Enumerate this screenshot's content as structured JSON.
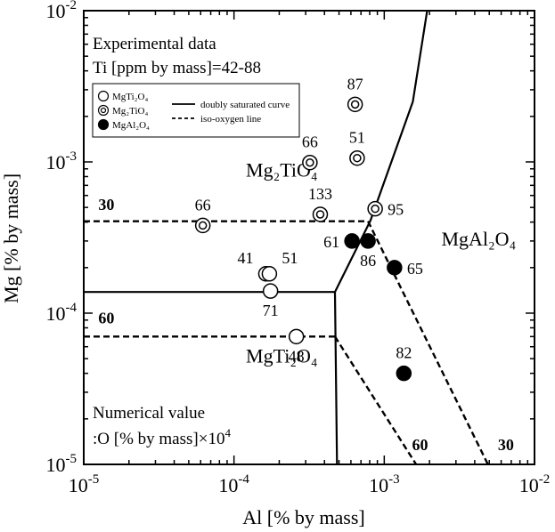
{
  "chart_data": {
    "type": "scatter",
    "x_scale": "log",
    "y_scale": "log",
    "xlim": [
      1e-05,
      0.01
    ],
    "ylim": [
      1e-05,
      0.01
    ],
    "xlabel": "Al [% by mass]",
    "ylabel": "Mg [% by mass]",
    "x_ticks": [
      {
        "value": 1e-05,
        "base": "10",
        "exp": "-5"
      },
      {
        "value": 0.0001,
        "base": "10",
        "exp": "-4"
      },
      {
        "value": 0.001,
        "base": "10",
        "exp": "-3"
      },
      {
        "value": 0.01,
        "base": "10",
        "exp": "-2"
      }
    ],
    "y_ticks": [
      {
        "value": 1e-05,
        "base": "10",
        "exp": "-5"
      },
      {
        "value": 0.0001,
        "base": "10",
        "exp": "-4"
      },
      {
        "value": 0.001,
        "base": "10",
        "exp": "-3"
      },
      {
        "value": 0.01,
        "base": "10",
        "exp": "-2"
      }
    ],
    "info_text": {
      "line1": "Experimental data",
      "line2": "Ti [ppm by mass]=42-88",
      "numerical_line1": "Numerical value",
      "numerical_line2": ":O [% by mass]×10",
      "numerical_sup": "4"
    },
    "legend": {
      "placement": "top-left",
      "items": [
        {
          "marker": "open-circle",
          "label": "MgTi₂O₄"
        },
        {
          "marker": "double-circle",
          "label": "Mg₂TiO₄"
        },
        {
          "marker": "filled-circle",
          "label": "MgAl₂O₄"
        },
        {
          "marker": "solid-line",
          "label": "doubly saturated curve"
        },
        {
          "marker": "dashed-line",
          "label": "iso-oxygen line"
        }
      ]
    },
    "regions": [
      {
        "label": "Mg₂TiO₄",
        "x": 0.00012,
        "y": 0.0008
      },
      {
        "label": "MgAl₂O₄",
        "x": 0.0024,
        "y": 0.00028
      },
      {
        "label": "MgTi₂O₄",
        "x": 0.00012,
        "y": 4.7e-05
      }
    ],
    "series": [
      {
        "name": "MgTi₂O₄",
        "marker": "open-circle",
        "points": [
          {
            "x": 0.000163,
            "y": 0.000182,
            "label": "41"
          },
          {
            "x": 0.000172,
            "y": 0.000182,
            "label": "51"
          },
          {
            "x": 0.000175,
            "y": 0.00014,
            "label": "71"
          },
          {
            "x": 0.00026,
            "y": 7e-05,
            "label": "48"
          }
        ]
      },
      {
        "name": "Mg₂TiO₄",
        "marker": "double-circle",
        "points": [
          {
            "x": 6.2e-05,
            "y": 0.00038,
            "label": "66"
          },
          {
            "x": 0.00032,
            "y": 0.00099,
            "label": "66"
          },
          {
            "x": 0.000375,
            "y": 0.00045,
            "label": "133"
          },
          {
            "x": 0.00064,
            "y": 0.0024,
            "label": "87"
          },
          {
            "x": 0.00066,
            "y": 0.00106,
            "label": "51"
          },
          {
            "x": 0.00087,
            "y": 0.00049,
            "label": "95"
          }
        ]
      },
      {
        "name": "MgAl₂O₄",
        "marker": "filled-circle",
        "points": [
          {
            "x": 0.00061,
            "y": 0.0003,
            "label": "61"
          },
          {
            "x": 0.00078,
            "y": 0.0003,
            "label": "86"
          },
          {
            "x": 0.00117,
            "y": 0.0002,
            "label": "65"
          },
          {
            "x": 0.00135,
            "y": 4e-05,
            "label": "82"
          }
        ]
      }
    ],
    "curves": [
      {
        "name": "doubly saturated curve",
        "style": "solid",
        "segments": [
          [
            [
              1e-05,
              0.000138
            ],
            [
              0.00047,
              0.000138
            ],
            [
              0.00081,
              0.00041
            ],
            [
              0.00155,
              0.0025
            ],
            [
              0.00193,
              0.01
            ]
          ],
          [
            [
              0.00047,
              0.000138
            ],
            [
              0.000485,
              1e-05
            ]
          ]
        ]
      },
      {
        "name": "iso-oxygen line",
        "style": "dashed",
        "segments": [
          {
            "label": "30",
            "label_at": [
              1.25e-05,
              0.00048
            ],
            "points": [
              [
                1e-05,
                0.000405
              ],
              [
                0.00078,
                0.000405
              ]
            ]
          },
          {
            "label": "",
            "points": [
              [
                0.00078,
                0.000405
              ],
              [
                0.0049,
                1e-05
              ]
            ]
          },
          {
            "label": "60",
            "label_at": [
              1.25e-05,
              8.55e-05
            ],
            "points": [
              [
                1e-05,
                7e-05
              ],
              [
                0.00047,
                7e-05
              ]
            ]
          },
          {
            "label": "",
            "points": [
              [
                0.00047,
                7e-05
              ],
              [
                0.00163,
                1e-05
              ]
            ]
          }
        ],
        "end_labels": [
          {
            "label": "60",
            "x": 0.00153,
            "y": 1.24e-05
          },
          {
            "label": "30",
            "x": 0.0057,
            "y": 1.24e-05
          }
        ]
      }
    ]
  }
}
